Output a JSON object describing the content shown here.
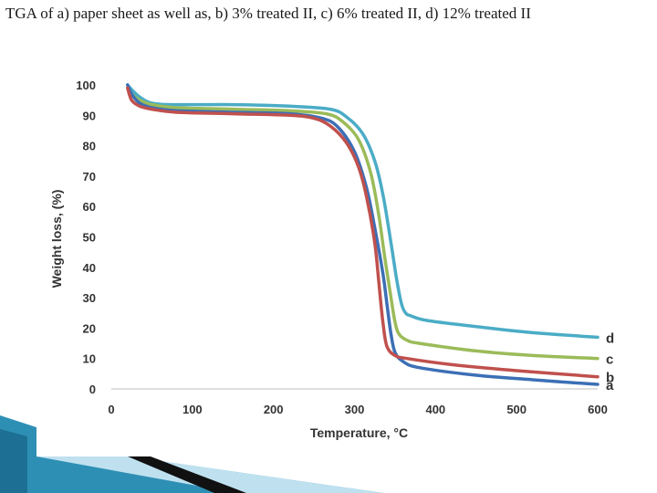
{
  "title": "TGA of a) paper sheet as well as, b) 3% treated II, c) 6% treated II, d) 12% treated II",
  "chart_data": {
    "type": "line",
    "xlabel": "Temperature, °C",
    "ylabel": "Weight loss, (%)",
    "xlim": [
      0,
      600
    ],
    "ylim": [
      0,
      100
    ],
    "x_ticks": [
      "0",
      "100",
      "200",
      "300",
      "400",
      "500",
      "600"
    ],
    "y_ticks": [
      "0",
      "10",
      "20",
      "30",
      "40",
      "50",
      "60",
      "70",
      "80",
      "90",
      "100"
    ],
    "grid": false,
    "legend": "inline-right",
    "series": [
      {
        "name": "a",
        "color": "#3c6fb5",
        "x": [
          20,
          25,
          35,
          50,
          80,
          150,
          220,
          260,
          280,
          300,
          315,
          325,
          335,
          340,
          345,
          350,
          360,
          380,
          450,
          520,
          600
        ],
        "y": [
          100,
          97,
          94,
          92.5,
          91.5,
          91,
          90.5,
          89,
          86,
          78,
          66,
          53,
          38,
          28,
          18,
          12,
          9,
          7,
          4.5,
          3,
          1.5
        ]
      },
      {
        "name": "b",
        "color": "#c0504d",
        "x": [
          20,
          25,
          35,
          50,
          80,
          150,
          220,
          250,
          270,
          290,
          305,
          315,
          325,
          330,
          335,
          340,
          350,
          365,
          420,
          500,
          600
        ],
        "y": [
          99,
          95,
          93,
          92,
          91,
          90.5,
          90,
          89,
          86.5,
          81,
          73,
          63,
          48,
          35,
          22,
          14,
          11,
          10,
          8,
          6,
          4
        ]
      },
      {
        "name": "c",
        "color": "#9bbb59",
        "x": [
          20,
          25,
          35,
          50,
          80,
          150,
          220,
          265,
          285,
          305,
          320,
          330,
          338,
          345,
          350,
          355,
          365,
          380,
          450,
          520,
          600
        ],
        "y": [
          99,
          97,
          95,
          93.5,
          92.5,
          92,
          91.5,
          90.5,
          88,
          82,
          71,
          57,
          42,
          30,
          22,
          18,
          16,
          15,
          12.5,
          11,
          10
        ]
      },
      {
        "name": "d",
        "color": "#4bacc6",
        "x": [
          20,
          25,
          35,
          50,
          80,
          150,
          220,
          270,
          290,
          310,
          325,
          335,
          345,
          352,
          358,
          363,
          370,
          390,
          450,
          520,
          600
        ],
        "y": [
          100,
          98.5,
          96,
          94,
          93.5,
          93.5,
          93,
          92,
          89.5,
          84,
          75,
          64,
          48,
          36,
          28,
          25,
          24,
          22.5,
          20.5,
          18.5,
          17
        ]
      }
    ]
  }
}
